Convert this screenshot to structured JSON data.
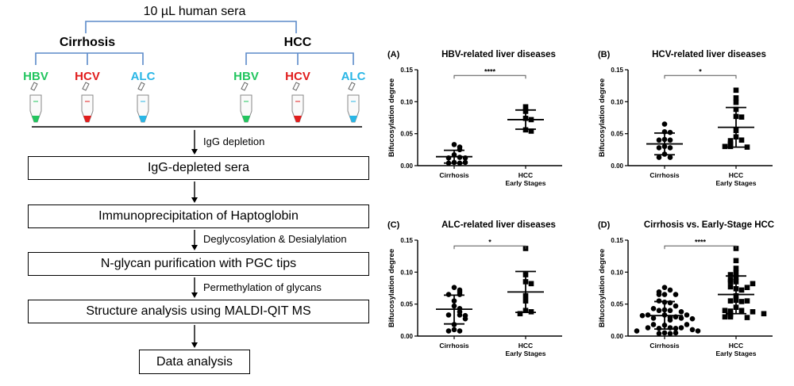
{
  "workflow": {
    "sample": "10 µL human sera",
    "groups": [
      "Cirrhosis",
      "HCC"
    ],
    "subgroups": [
      {
        "label": "HBV",
        "color": "#22c55e"
      },
      {
        "label": "HCV",
        "color": "#e11d1d"
      },
      {
        "label": "ALC",
        "color": "#29b6e6"
      }
    ],
    "bracket_color": "#5b8ac9",
    "boxes": [
      "IgG-depleted sera",
      "Immunoprecipitation of Haptoglobin",
      "N-glycan purification with PGC tips",
      "Structure analysis using MALDI-QIT MS",
      "Data analysis"
    ],
    "steps": [
      "IgG depletion",
      "Deglycosylation & Desialylation",
      "Permethylation of glycans"
    ]
  },
  "chart_data": [
    {
      "type": "scatter",
      "panel": "(A)",
      "title": "HBV-related liver diseases",
      "ylabel": "Bifucosylation degree",
      "ylim": [
        0,
        0.15
      ],
      "yticks": [
        "0.00",
        "0.05",
        "0.10",
        "0.15"
      ],
      "categories": [
        "Cirrhosis",
        "HCC|Early Stages"
      ],
      "significance": "****",
      "series": [
        {
          "values": [
            0.033,
            0.029,
            0.025,
            0.017,
            0.013,
            0.012,
            0.012,
            0.005,
            0.004,
            0.004,
            0.005
          ],
          "mean": 0.014,
          "sd": [
            0.004,
            0.024
          ],
          "marker": "circle"
        },
        {
          "values": [
            0.092,
            0.085,
            0.074,
            0.072,
            0.056,
            0.054
          ],
          "mean": 0.072,
          "sd": [
            0.057,
            0.087
          ],
          "marker": "square"
        }
      ]
    },
    {
      "type": "scatter",
      "panel": "(B)",
      "title": "HCV-related liver diseases",
      "ylabel": "Bifucosylation degree",
      "ylim": [
        0,
        0.15
      ],
      "yticks": [
        "0.00",
        "0.05",
        "0.10",
        "0.15"
      ],
      "categories": [
        "Cirrhosis",
        "HCC|Early Stages"
      ],
      "significance": "*",
      "series": [
        {
          "values": [
            0.065,
            0.053,
            0.052,
            0.041,
            0.04,
            0.04,
            0.03,
            0.028,
            0.028,
            0.018,
            0.013,
            0.013
          ],
          "mean": 0.034,
          "sd": [
            0.017,
            0.051
          ],
          "marker": "circle"
        },
        {
          "values": [
            0.118,
            0.106,
            0.099,
            0.088,
            0.077,
            0.076,
            0.055,
            0.045,
            0.04,
            0.039,
            0.035,
            0.033,
            0.03,
            0.029,
            0.03
          ],
          "mean": 0.06,
          "sd": [
            0.029,
            0.091
          ],
          "marker": "square"
        }
      ]
    },
    {
      "type": "scatter",
      "panel": "(C)",
      "title": "ALC-related liver diseases",
      "ylabel": "Bifucosylation degree",
      "ylim": [
        0,
        0.15
      ],
      "yticks": [
        "0.00",
        "0.05",
        "0.10",
        "0.15"
      ],
      "categories": [
        "Cirrhosis",
        "HCC|Early Stages"
      ],
      "significance": "*",
      "series": [
        {
          "values": [
            0.076,
            0.072,
            0.069,
            0.065,
            0.065,
            0.055,
            0.047,
            0.043,
            0.038,
            0.033,
            0.033,
            0.032,
            0.027,
            0.018,
            0.01,
            0.008,
            0.008
          ],
          "mean": 0.042,
          "sd": [
            0.019,
            0.064
          ],
          "marker": "circle"
        },
        {
          "values": [
            0.137,
            0.096,
            0.085,
            0.082,
            0.063,
            0.055,
            0.04,
            0.038,
            0.035
          ],
          "mean": 0.069,
          "sd": [
            0.037,
            0.101
          ],
          "marker": "square"
        }
      ]
    },
    {
      "type": "scatter",
      "panel": "(D)",
      "title": "Cirrhosis vs. Early-Stage HCC",
      "ylabel": "Bifucosylation degree",
      "ylim": [
        0,
        0.15
      ],
      "yticks": [
        "0.00",
        "0.05",
        "0.10",
        "0.15"
      ],
      "categories": [
        "Cirrhosis",
        "HCC|Early Stages"
      ],
      "significance": "****",
      "series": [
        {
          "values": [
            0.033,
            0.029,
            0.025,
            0.017,
            0.013,
            0.012,
            0.012,
            0.005,
            0.004,
            0.004,
            0.005,
            0.065,
            0.053,
            0.052,
            0.041,
            0.04,
            0.04,
            0.03,
            0.028,
            0.028,
            0.018,
            0.013,
            0.013,
            0.076,
            0.072,
            0.069,
            0.065,
            0.065,
            0.055,
            0.047,
            0.043,
            0.038,
            0.033,
            0.033,
            0.032,
            0.027,
            0.018,
            0.01,
            0.008,
            0.008
          ],
          "mean": 0.032,
          "sd": [
            0.011,
            0.054
          ],
          "marker": "circle"
        },
        {
          "values": [
            0.092,
            0.085,
            0.074,
            0.072,
            0.056,
            0.054,
            0.118,
            0.106,
            0.099,
            0.088,
            0.077,
            0.076,
            0.055,
            0.045,
            0.04,
            0.039,
            0.035,
            0.033,
            0.03,
            0.029,
            0.03,
            0.137,
            0.096,
            0.085,
            0.082,
            0.063,
            0.055,
            0.04,
            0.038,
            0.035
          ],
          "mean": 0.065,
          "sd": [
            0.035,
            0.094
          ],
          "marker": "square"
        }
      ]
    }
  ]
}
